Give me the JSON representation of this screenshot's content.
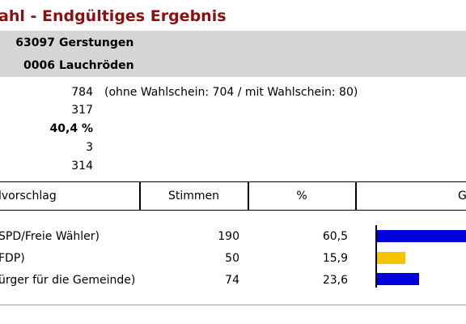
{
  "title": "ahl - Endgültiges Ergebnis",
  "header": {
    "rows": [
      {
        "code": "63097",
        "name": "Gerstungen"
      },
      {
        "code": "0006",
        "name": "Lauchröden"
      }
    ]
  },
  "stats": {
    "wahlberechtigte": "784",
    "wahlberechtigte_note": "(ohne Wahlschein: 704 / mit Wahlschein: 80)",
    "waehler": "317",
    "beteiligung": "40,4 %",
    "ungueltig": "3",
    "gueltig": "314"
  },
  "table": {
    "headers": {
      "vorschlag": "lvorschlag",
      "stimmen": "Stimmen",
      "prozent": "%",
      "grafik": "G"
    },
    "rows": [
      {
        "name": "SPD/Freie Wähler)",
        "stimmen": "190",
        "prozent": "60,5"
      },
      {
        "name": "FDP)",
        "stimmen": "50",
        "prozent": "15,9"
      },
      {
        "name": "ürger für die Gemeinde)",
        "stimmen": "74",
        "prozent": "23,6"
      }
    ]
  },
  "bars": [
    {
      "percent": 60.5,
      "color": "#0000dd"
    },
    {
      "percent": 15.9,
      "color": "#f5c400"
    },
    {
      "percent": 23.6,
      "color": "#0000dd"
    }
  ]
}
